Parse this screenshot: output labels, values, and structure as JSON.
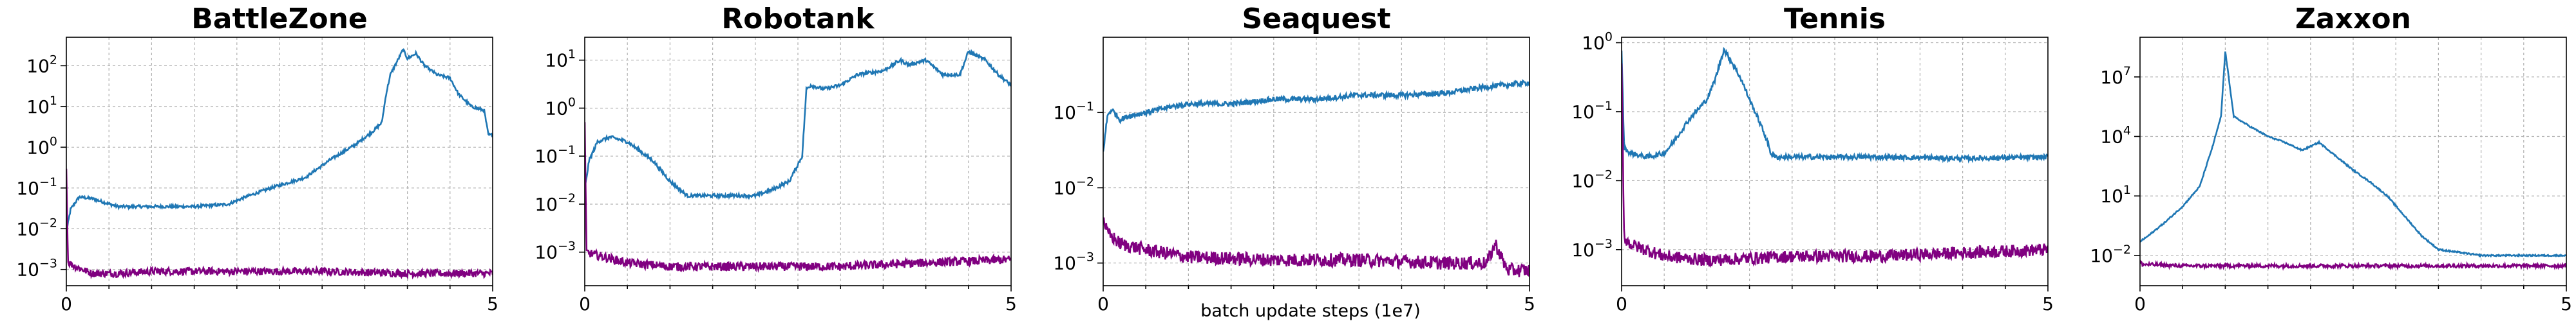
{
  "figure": {
    "shared_xlabel": "batch update steps (1e7)"
  },
  "colors": {
    "blue_series": "#1f77b4",
    "purple_series": "#800080",
    "grid": "#b0b0b0"
  },
  "chart_data": [
    {
      "type": "line",
      "title": "BattleZone",
      "xlabel": "",
      "xlim": [
        0,
        5
      ],
      "xticks": [
        "0",
        "5"
      ],
      "yscale": "log",
      "ylim": [
        0.0004,
        500
      ],
      "ytick_exponents": [
        -3,
        -2,
        -1,
        0,
        1,
        2
      ],
      "grid": true,
      "series": [
        {
          "color": "#1f77b4",
          "x": [
            0,
            0.05,
            0.15,
            0.3,
            0.6,
            1.0,
            1.5,
            1.9,
            2.1,
            2.4,
            2.8,
            3.1,
            3.4,
            3.6,
            3.7,
            3.75,
            3.8,
            3.95,
            4.0,
            4.1,
            4.2,
            4.35,
            4.5,
            4.6,
            4.75,
            4.9,
            4.95,
            5.0
          ],
          "y": [
            0.008,
            0.03,
            0.06,
            0.055,
            0.035,
            0.035,
            0.035,
            0.04,
            0.06,
            0.1,
            0.18,
            0.5,
            1.2,
            2.5,
            4,
            20,
            60,
            250,
            150,
            200,
            100,
            60,
            50,
            20,
            10,
            8,
            2,
            2
          ]
        },
        {
          "color": "#800080",
          "x": [
            0,
            0.02,
            0.1,
            0.3,
            0.6,
            1.0,
            2.0,
            3.0,
            4.0,
            5.0
          ],
          "y": [
            0.3,
            0.0015,
            0.0012,
            0.0008,
            0.0008,
            0.0009,
            0.0009,
            0.0009,
            0.0008,
            0.0008
          ]
        }
      ]
    },
    {
      "type": "line",
      "title": "Robotank",
      "xlabel": "",
      "xlim": [
        0,
        5
      ],
      "xticks": [
        "0",
        "5"
      ],
      "yscale": "log",
      "ylim": [
        0.0002,
        30
      ],
      "ytick_exponents": [
        -3,
        -2,
        -1,
        0,
        1
      ],
      "grid": true,
      "series": [
        {
          "color": "#1f77b4",
          "x": [
            0,
            0.05,
            0.15,
            0.3,
            0.5,
            0.8,
            1.0,
            1.2,
            1.4,
            1.6,
            2.0,
            2.2,
            2.4,
            2.55,
            2.6,
            2.65,
            2.8,
            3.0,
            3.2,
            3.5,
            3.7,
            3.8,
            4.0,
            4.2,
            4.4,
            4.5,
            4.7,
            4.85,
            5.0
          ],
          "y": [
            0.02,
            0.08,
            0.2,
            0.25,
            0.2,
            0.08,
            0.03,
            0.015,
            0.015,
            0.015,
            0.015,
            0.02,
            0.03,
            0.1,
            2.5,
            3,
            2.5,
            3,
            5,
            6,
            10,
            8,
            10,
            5,
            5,
            15,
            10,
            5,
            3
          ]
        },
        {
          "color": "#800080",
          "x": [
            0,
            0.02,
            0.1,
            0.5,
            1.0,
            2.0,
            3.0,
            4.0,
            5.0
          ],
          "y": [
            0.5,
            0.001,
            0.0009,
            0.0006,
            0.0005,
            0.0005,
            0.0005,
            0.0006,
            0.0007
          ]
        }
      ]
    },
    {
      "type": "line",
      "title": "Seaquest",
      "xlabel": "batch update steps (1e7)",
      "xlim": [
        0,
        5
      ],
      "xticks": [
        "0",
        "5"
      ],
      "yscale": "log",
      "ylim": [
        0.0005,
        1
      ],
      "ytick_exponents": [
        -3,
        -2,
        -1
      ],
      "grid": true,
      "series": [
        {
          "color": "#1f77b4",
          "x": [
            0,
            0.05,
            0.1,
            0.2,
            0.3,
            0.5,
            0.8,
            1.0,
            1.5,
            2.0,
            2.5,
            3.0,
            3.5,
            4.0,
            4.5,
            5.0
          ],
          "y": [
            0.03,
            0.09,
            0.11,
            0.08,
            0.09,
            0.1,
            0.12,
            0.13,
            0.13,
            0.15,
            0.15,
            0.17,
            0.17,
            0.18,
            0.22,
            0.25
          ]
        },
        {
          "color": "#800080",
          "x": [
            0,
            0.05,
            0.2,
            0.5,
            1.0,
            2.0,
            3.0,
            4.0,
            4.5,
            4.6,
            4.7,
            4.75,
            5.0
          ],
          "y": [
            0.004,
            0.0025,
            0.0018,
            0.0015,
            0.0012,
            0.0011,
            0.0011,
            0.001,
            0.001,
            0.0018,
            0.001,
            0.0008,
            0.0008
          ]
        }
      ]
    },
    {
      "type": "line",
      "title": "Tennis",
      "xlabel": "",
      "xlim": [
        0,
        5
      ],
      "xticks": [
        "0",
        "5"
      ],
      "yscale": "log",
      "ylim": [
        0.0003,
        1.2
      ],
      "ytick_exponents": [
        -3,
        -2,
        -1,
        0
      ],
      "grid": true,
      "series": [
        {
          "color": "#1f77b4",
          "x": [
            0,
            0.03,
            0.1,
            0.3,
            0.5,
            0.6,
            0.8,
            1.0,
            1.1,
            1.2,
            1.3,
            1.4,
            1.5,
            1.6,
            1.7,
            1.75,
            1.8,
            2.0,
            3.0,
            4.0,
            5.0
          ],
          "y": [
            0.8,
            0.03,
            0.025,
            0.022,
            0.025,
            0.035,
            0.08,
            0.15,
            0.3,
            0.8,
            0.5,
            0.3,
            0.15,
            0.08,
            0.04,
            0.025,
            0.022,
            0.022,
            0.022,
            0.021,
            0.022
          ]
        },
        {
          "color": "#800080",
          "x": [
            0,
            0.03,
            0.1,
            0.5,
            1.0,
            2.0,
            3.0,
            4.0,
            5.0
          ],
          "y": [
            0.5,
            0.0015,
            0.0012,
            0.0008,
            0.0007,
            0.0008,
            0.0008,
            0.0009,
            0.001
          ]
        }
      ]
    },
    {
      "type": "line",
      "title": "Zaxxon",
      "xlabel": "",
      "xlim": [
        0,
        5
      ],
      "xticks": [
        "0",
        "5"
      ],
      "yscale": "log",
      "ylim": [
        0.0003,
        1000000000
      ],
      "ytick_exponents": [
        -2,
        1,
        4,
        7
      ],
      "grid": true,
      "series": [
        {
          "color": "#1f77b4",
          "x": [
            0,
            0.1,
            0.3,
            0.5,
            0.7,
            0.85,
            0.95,
            1.0,
            1.1,
            1.3,
            1.5,
            1.7,
            1.9,
            2.1,
            2.3,
            2.5,
            2.7,
            2.9,
            3.1,
            3.3,
            3.5,
            4.0,
            4.5,
            5.0
          ],
          "y": [
            0.05,
            0.1,
            0.5,
            3,
            30,
            3000,
            100000,
            200000000,
            100000,
            30000,
            10000,
            5000,
            2000,
            5000,
            1000,
            200,
            50,
            10,
            1,
            0.1,
            0.02,
            0.01,
            0.01,
            0.01
          ]
        },
        {
          "color": "#800080",
          "x": [
            0,
            0.03,
            0.1,
            0.5,
            1.0,
            2.0,
            3.0,
            4.0,
            5.0
          ],
          "y": [
            0.005,
            0.0035,
            0.0035,
            0.003,
            0.003,
            0.003,
            0.003,
            0.003,
            0.003
          ]
        }
      ]
    }
  ]
}
